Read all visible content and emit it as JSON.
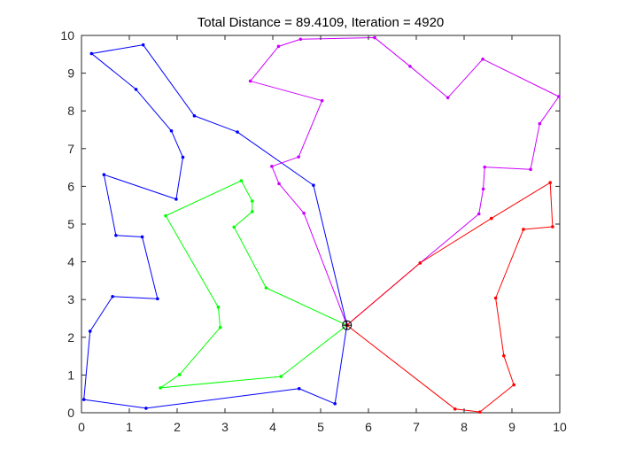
{
  "chart_data": {
    "type": "line",
    "title": "Total Distance = 89.4109, Iteration = 4920",
    "xlabel": "",
    "ylabel": "",
    "xlim": [
      0,
      10
    ],
    "ylim": [
      0,
      10
    ],
    "x_ticks": [
      "0",
      "1",
      "2",
      "3",
      "4",
      "5",
      "6",
      "7",
      "8",
      "9",
      "10"
    ],
    "y_ticks": [
      "0",
      "1",
      "2",
      "3",
      "4",
      "5",
      "6",
      "7",
      "8",
      "9",
      "10"
    ],
    "grid": false,
    "depot": {
      "x": 5.55,
      "y": 2.32
    },
    "series": [
      {
        "color": "#0000ff",
        "points": [
          [
            5.55,
            2.32
          ],
          [
            4.85,
            6.03
          ],
          [
            3.26,
            7.44
          ],
          [
            2.36,
            7.87
          ],
          [
            1.29,
            9.75
          ],
          [
            0.21,
            9.52
          ],
          [
            1.14,
            8.57
          ],
          [
            1.88,
            7.47
          ],
          [
            2.12,
            6.77
          ],
          [
            1.98,
            5.66
          ],
          [
            0.47,
            6.31
          ],
          [
            0.72,
            4.7
          ],
          [
            1.27,
            4.66
          ],
          [
            1.59,
            3.02
          ],
          [
            0.65,
            3.08
          ],
          [
            0.18,
            2.16
          ],
          [
            0.05,
            0.35
          ],
          [
            1.35,
            0.12
          ],
          [
            4.55,
            0.64
          ],
          [
            5.3,
            0.24
          ],
          [
            5.55,
            2.32
          ]
        ]
      },
      {
        "color": "#cc00ff",
        "points": [
          [
            5.55,
            2.32
          ],
          [
            4.65,
            5.29
          ],
          [
            4.13,
            6.07
          ],
          [
            3.98,
            6.53
          ],
          [
            4.54,
            6.78
          ],
          [
            5.03,
            8.27
          ],
          [
            3.53,
            8.79
          ],
          [
            4.12,
            9.71
          ],
          [
            4.58,
            9.9
          ],
          [
            6.13,
            9.94
          ],
          [
            6.87,
            9.18
          ],
          [
            7.66,
            8.35
          ],
          [
            8.39,
            9.37
          ],
          [
            9.98,
            8.38
          ],
          [
            9.58,
            7.66
          ],
          [
            9.39,
            6.45
          ],
          [
            8.43,
            6.51
          ],
          [
            8.4,
            5.93
          ],
          [
            8.31,
            5.27
          ],
          [
            7.08,
            3.97
          ],
          [
            5.55,
            2.32
          ]
        ]
      },
      {
        "color": "#00ff00",
        "points": [
          [
            5.55,
            2.32
          ],
          [
            3.86,
            3.31
          ],
          [
            3.19,
            4.92
          ],
          [
            3.57,
            5.33
          ],
          [
            3.57,
            5.61
          ],
          [
            3.34,
            6.15
          ],
          [
            1.76,
            5.22
          ],
          [
            2.86,
            2.8
          ],
          [
            2.9,
            2.26
          ],
          [
            2.05,
            1.01
          ],
          [
            1.65,
            0.66
          ],
          [
            4.17,
            0.96
          ],
          [
            5.55,
            2.32
          ]
        ]
      },
      {
        "color": "#ff0000",
        "points": [
          [
            5.55,
            2.32
          ],
          [
            7.81,
            0.1
          ],
          [
            8.33,
            0.02
          ],
          [
            9.04,
            0.74
          ],
          [
            8.83,
            1.51
          ],
          [
            8.66,
            3.04
          ],
          [
            9.24,
            4.86
          ],
          [
            9.85,
            4.93
          ],
          [
            9.8,
            6.1
          ],
          [
            8.57,
            5.15
          ],
          [
            7.08,
            3.97
          ],
          [
            5.55,
            2.32
          ]
        ]
      }
    ]
  }
}
